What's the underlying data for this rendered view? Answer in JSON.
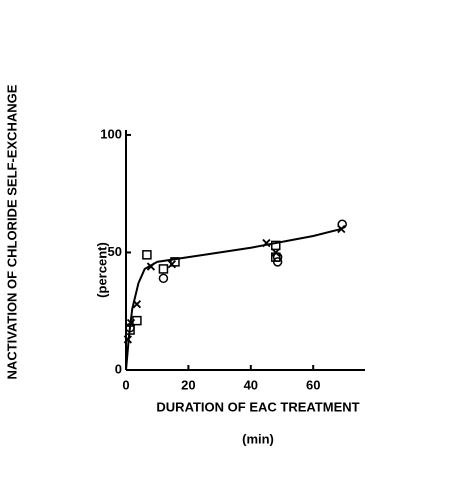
{
  "chart_data": {
    "type": "scatter",
    "y_label": "NACTIVATION OF CHLORIDE SELF-EXCHANGE",
    "y_unit": "(percent)",
    "x_label": "DURATION OF EAC TREATMENT",
    "x_unit": "(min)",
    "xlim": [
      0,
      76.6
    ],
    "ylim": [
      0,
      102.1
    ],
    "xticks": [
      0,
      20,
      40,
      60
    ],
    "yticks": [
      0,
      50,
      100
    ],
    "series": [
      {
        "marker": "square",
        "color": "#000000",
        "x": [
          1.3,
          3.5,
          6.7,
          12,
          15.7,
          48,
          48
        ],
        "values": [
          17,
          21,
          49,
          43,
          46,
          53,
          48
        ]
      },
      {
        "marker": "cross",
        "color": "#000000",
        "x": [
          0.6,
          1.6,
          3.5,
          8,
          14.7,
          45,
          48,
          69
        ],
        "values": [
          13,
          20,
          28,
          44,
          45,
          54,
          50,
          60
        ]
      },
      {
        "marker": "circle",
        "color": "#000000",
        "x": [
          1.3,
          12,
          48.6,
          48.6,
          69.3
        ],
        "values": [
          18,
          39,
          46,
          48,
          62
        ]
      },
      {
        "marker": "none",
        "line": true,
        "color": "#000000",
        "x": [
          0,
          1,
          2,
          4,
          6,
          10,
          20,
          40,
          60,
          69
        ],
        "values": [
          0,
          15,
          26,
          37,
          43,
          46,
          48,
          52,
          57,
          60
        ]
      }
    ]
  }
}
